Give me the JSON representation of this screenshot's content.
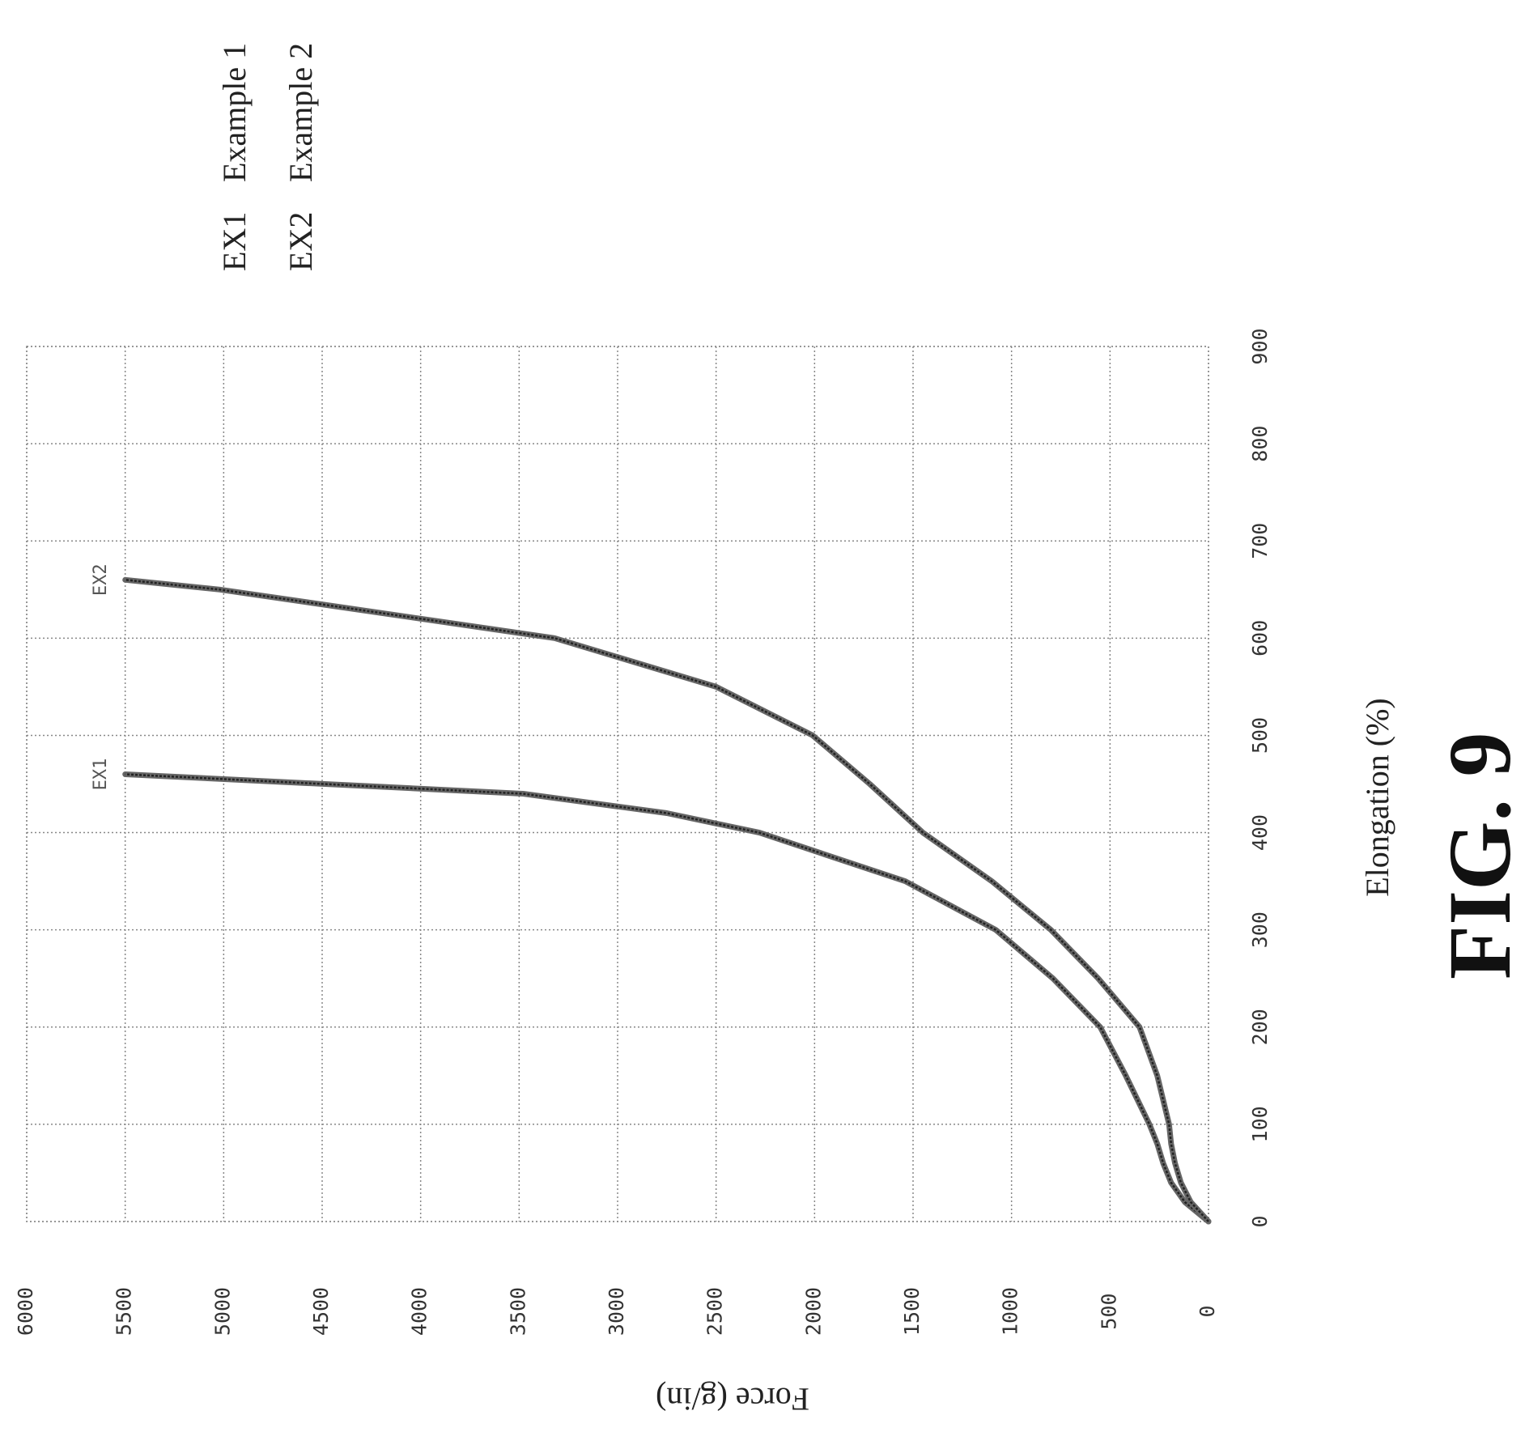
{
  "chart_data": {
    "type": "line",
    "xlabel": "Elongation (%)",
    "ylabel": "Force (g/in)",
    "xlim": [
      0,
      900
    ],
    "ylim": [
      0,
      6000
    ],
    "x_ticks": [
      0,
      100,
      200,
      300,
      400,
      500,
      600,
      700,
      800,
      900
    ],
    "y_ticks": [
      0,
      500,
      1000,
      1500,
      2000,
      2500,
      3000,
      3500,
      4000,
      4500,
      5000,
      5500,
      6000
    ],
    "grid": true,
    "series": [
      {
        "name": "EX1",
        "x": [
          0,
          20,
          40,
          60,
          80,
          100,
          150,
          200,
          250,
          300,
          350,
          400,
          420,
          440,
          460
        ],
        "y": [
          0,
          120,
          190,
          230,
          260,
          300,
          420,
          550,
          790,
          1080,
          1540,
          2280,
          2750,
          3480,
          5500
        ]
      },
      {
        "name": "EX2",
        "x": [
          0,
          20,
          40,
          60,
          80,
          100,
          150,
          200,
          250,
          300,
          350,
          400,
          450,
          500,
          550,
          600,
          650,
          660
        ],
        "y": [
          0,
          90,
          140,
          170,
          190,
          200,
          260,
          350,
          560,
          800,
          1100,
          1450,
          1720,
          2010,
          2500,
          3320,
          5020,
          5500
        ]
      }
    ]
  },
  "legend": [
    {
      "code": "EX1",
      "text": "Example 1"
    },
    {
      "code": "EX2",
      "text": "Example 2"
    }
  ],
  "figure_label": "FIG. 9"
}
